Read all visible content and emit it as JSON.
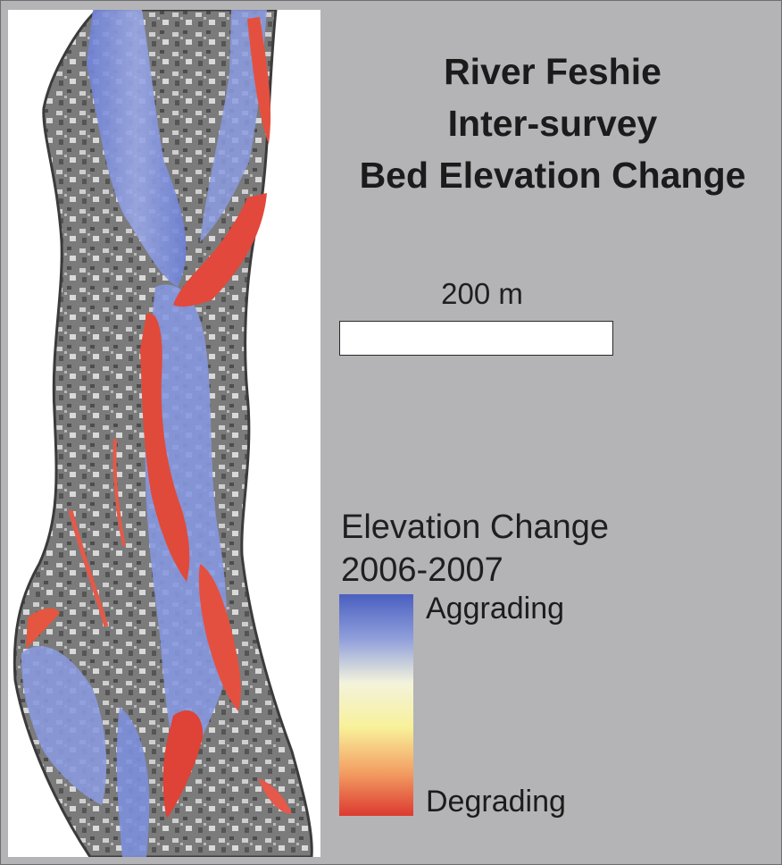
{
  "map": {
    "title_lines": [
      "River Feshie",
      "Inter-survey",
      "Bed Elevation Change"
    ],
    "scale_bar_label": "200 m",
    "legend": {
      "title_lines": [
        "Elevation Change",
        "2006-2007"
      ],
      "high_label": "Aggrading",
      "low_label": "Degrading",
      "ramp_colors": [
        "#4a5fc0",
        "#8f9edb",
        "#f3f3dc",
        "#f8f19a",
        "#f3a064",
        "#dc3a30"
      ]
    },
    "colors": {
      "background": "#b4b4b6",
      "hillshade": "#6f6f6f",
      "aggrading": "#7a8ee0",
      "degrading": "#e2483c"
    }
  }
}
